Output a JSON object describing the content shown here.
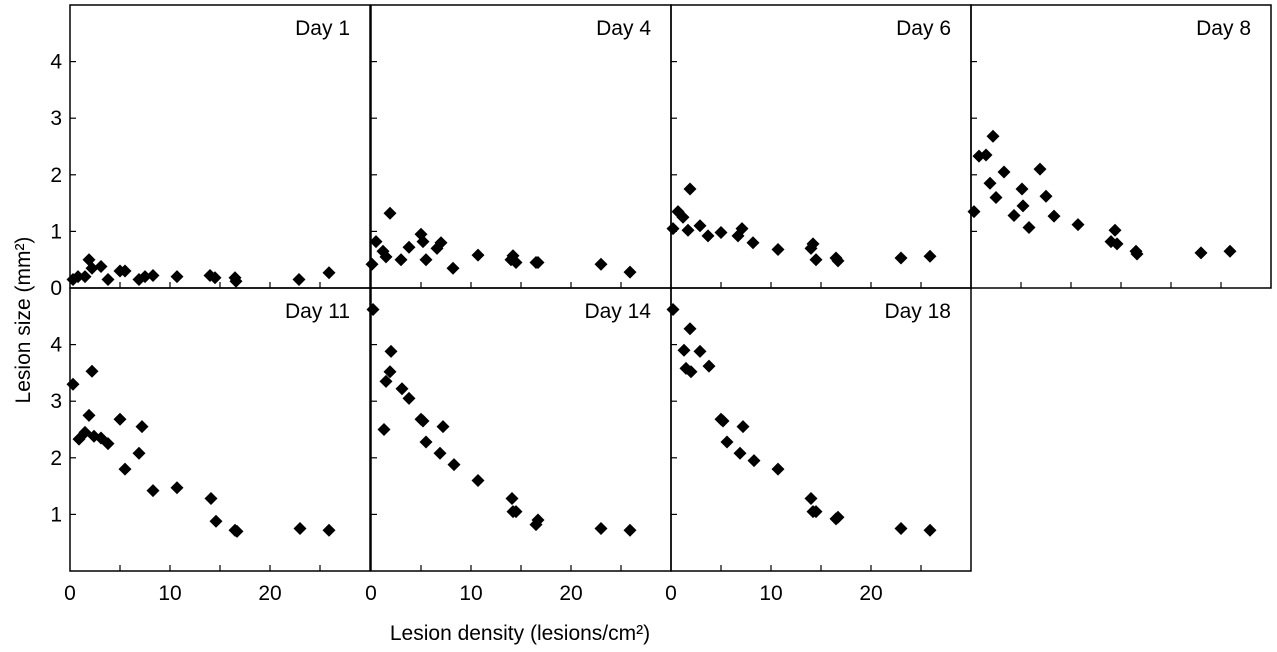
{
  "chart_data": {
    "type": "scatter",
    "layout": "small-multiples",
    "xlabel": "Lesion density (lesions/cm²)",
    "ylabel": "Lesion size  (mm²)",
    "xlim": [
      0,
      30
    ],
    "ylim": [
      0,
      5
    ],
    "xticks": [
      0,
      10,
      20
    ],
    "yticks": [
      1,
      2,
      3,
      4
    ],
    "marker": "diamond",
    "marker_color": "#000000",
    "panels": [
      {
        "label": "Day 1",
        "x": [
          0.3,
          0.8,
          1.5,
          1.9,
          2.2,
          3.1,
          3.8,
          5.0,
          5.5,
          6.9,
          7.5,
          8.3,
          10.7,
          14.0,
          14.5,
          16.5,
          16.6,
          22.9,
          25.9
        ],
        "y": [
          0.15,
          0.2,
          0.2,
          0.5,
          0.35,
          0.38,
          0.15,
          0.3,
          0.3,
          0.15,
          0.2,
          0.22,
          0.2,
          0.22,
          0.18,
          0.18,
          0.12,
          0.15,
          0.27
        ]
      },
      {
        "label": "Day 4",
        "x": [
          0.1,
          0.5,
          1.2,
          1.5,
          1.9,
          3.0,
          3.8,
          5.0,
          5.2,
          5.5,
          6.6,
          7.0,
          8.2,
          10.7,
          14.0,
          14.2,
          14.5,
          16.5,
          16.7,
          23.0,
          25.9
        ],
        "y": [
          0.42,
          0.82,
          0.65,
          0.55,
          1.32,
          0.5,
          0.72,
          0.95,
          0.82,
          0.5,
          0.7,
          0.8,
          0.35,
          0.58,
          0.5,
          0.57,
          0.45,
          0.45,
          0.45,
          0.42,
          0.28
        ]
      },
      {
        "label": "Day 6",
        "x": [
          0.2,
          0.7,
          1.2,
          1.7,
          1.9,
          2.9,
          3.7,
          5.0,
          6.7,
          7.1,
          8.2,
          10.7,
          14.0,
          14.2,
          14.5,
          16.5,
          16.7,
          23.0,
          25.9
        ],
        "y": [
          1.05,
          1.35,
          1.25,
          1.02,
          1.75,
          1.1,
          0.92,
          0.98,
          0.92,
          1.05,
          0.8,
          0.68,
          0.7,
          0.78,
          0.5,
          0.53,
          0.48,
          0.53,
          0.56
        ]
      },
      {
        "label": "Day 8",
        "x": [
          0.3,
          0.8,
          1.5,
          1.9,
          2.2,
          2.5,
          3.3,
          4.3,
          5.1,
          5.2,
          5.8,
          6.9,
          7.5,
          8.3,
          10.7,
          14.0,
          14.4,
          14.6,
          16.5,
          16.6,
          23.0,
          25.9
        ],
        "y": [
          1.35,
          2.33,
          2.35,
          1.85,
          2.68,
          1.6,
          2.05,
          1.28,
          1.75,
          1.45,
          1.07,
          2.1,
          1.62,
          1.27,
          1.12,
          0.82,
          1.02,
          0.78,
          0.65,
          0.6,
          0.62,
          0.65
        ]
      },
      {
        "label": "Day 11",
        "x": [
          0.3,
          0.9,
          1.5,
          1.9,
          2.2,
          2.4,
          3.1,
          3.8,
          5.0,
          5.5,
          6.9,
          7.2,
          8.3,
          10.7,
          14.1,
          14.6,
          16.5,
          16.7,
          23.0,
          25.9
        ],
        "y": [
          3.3,
          2.33,
          2.45,
          2.75,
          3.53,
          2.38,
          2.35,
          2.25,
          2.68,
          1.8,
          2.08,
          2.55,
          1.42,
          1.47,
          1.28,
          0.88,
          0.72,
          0.7,
          0.75,
          0.72
        ],
        "overlap_note": null
      },
      {
        "label": "Day 14",
        "x": [
          0.2,
          1.3,
          1.5,
          1.9,
          2.0,
          3.1,
          3.8,
          5.0,
          5.2,
          5.5,
          6.9,
          7.2,
          8.3,
          10.7,
          14.1,
          14.2,
          14.5,
          16.5,
          16.7,
          23.0,
          25.9
        ],
        "y": [
          4.62,
          2.5,
          3.35,
          3.52,
          3.88,
          3.22,
          3.05,
          2.68,
          2.65,
          2.28,
          2.08,
          2.55,
          1.88,
          1.6,
          1.28,
          1.05,
          1.05,
          0.82,
          0.9,
          0.75,
          0.72
        ]
      },
      {
        "label": "Day 18",
        "x": [
          0.2,
          1.3,
          1.5,
          1.9,
          2.0,
          2.9,
          3.8,
          5.0,
          5.2,
          5.6,
          6.9,
          7.2,
          8.3,
          10.7,
          14.0,
          14.2,
          14.5,
          16.5,
          16.7,
          23.0,
          25.9
        ],
        "y": [
          4.62,
          3.9,
          3.58,
          4.28,
          3.52,
          3.88,
          3.62,
          2.68,
          2.65,
          2.28,
          2.08,
          2.55,
          1.95,
          1.8,
          1.28,
          1.05,
          1.05,
          0.92,
          0.95,
          0.75,
          0.72
        ]
      }
    ]
  }
}
